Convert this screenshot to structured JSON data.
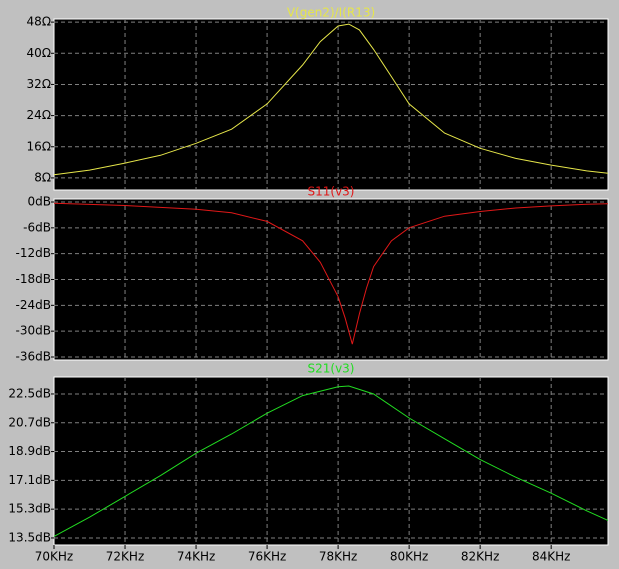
{
  "chart_data": [
    {
      "type": "line",
      "title": "V(gen2)/I(R13)",
      "color": "#e6e64a",
      "grid": true,
      "x": [
        70,
        71,
        72,
        73,
        74,
        75,
        76,
        77,
        77.5,
        78,
        78.3,
        78.6,
        79,
        79.5,
        80,
        81,
        82,
        83,
        84,
        85,
        85.6
      ],
      "values": [
        8.8,
        10,
        11.8,
        13.8,
        16.9,
        20.5,
        27,
        37,
        43,
        47,
        47.5,
        46,
        41,
        34,
        27,
        19.5,
        15.6,
        13,
        11.3,
        9.8,
        9.2
      ],
      "xlim": [
        70,
        85.6
      ],
      "ylim": [
        4.9,
        48.8
      ],
      "yticks": [
        {
          "value": 8,
          "label": "8Ω"
        },
        {
          "value": 16,
          "label": "16Ω"
        },
        {
          "value": 24,
          "label": "24Ω"
        },
        {
          "value": 32,
          "label": "32Ω"
        },
        {
          "value": 40,
          "label": "40Ω"
        },
        {
          "value": 48,
          "label": "48Ω"
        }
      ]
    },
    {
      "type": "line",
      "title": "S11(v3)",
      "color": "#e01818",
      "grid": true,
      "x": [
        70,
        72,
        74,
        75,
        76,
        77,
        77.5,
        78,
        78.2,
        78.4,
        78.6,
        78.8,
        79,
        79.5,
        80,
        81,
        82,
        83,
        84,
        85,
        85.6
      ],
      "values": [
        -0.3,
        -0.8,
        -1.7,
        -2.5,
        -4.5,
        -9,
        -14,
        -22,
        -27,
        -33,
        -26,
        -20,
        -15,
        -9,
        -6,
        -3.3,
        -2.2,
        -1.4,
        -0.9,
        -0.5,
        -0.4
      ],
      "xlim": [
        70,
        85.6
      ],
      "ylim": [
        -36.7,
        0.7
      ],
      "yticks": [
        {
          "value": -36,
          "label": "-36dB"
        },
        {
          "value": -30,
          "label": "-30dB"
        },
        {
          "value": -24,
          "label": "-24dB"
        },
        {
          "value": -18,
          "label": "-18dB"
        },
        {
          "value": -12,
          "label": "-12dB"
        },
        {
          "value": -6,
          "label": "-6dB"
        },
        {
          "value": 0,
          "label": "0dB"
        }
      ]
    },
    {
      "type": "line",
      "title": "S21(v3)",
      "color": "#22dd22",
      "grid": true,
      "x": [
        70,
        71,
        72,
        73,
        74,
        75,
        76,
        77,
        78,
        78.3,
        79,
        80,
        81,
        82,
        83,
        84,
        85,
        85.6
      ],
      "values": [
        13.6,
        14.8,
        16.1,
        17.4,
        18.8,
        20,
        21.3,
        22.4,
        22.95,
        23,
        22.5,
        21,
        19.7,
        18.4,
        17.3,
        16.3,
        15.2,
        14.6
      ],
      "xlim": [
        70,
        85.6
      ],
      "ylim": [
        13.06,
        23.56
      ],
      "yticks": [
        {
          "value": 13.5,
          "label": "13.5dB"
        },
        {
          "value": 15.3,
          "label": "15.3dB"
        },
        {
          "value": 17.1,
          "label": "17.1dB"
        },
        {
          "value": 18.9,
          "label": "18.9dB"
        },
        {
          "value": 20.7,
          "label": "20.7dB"
        },
        {
          "value": 22.5,
          "label": "22.5dB"
        }
      ],
      "xticks": [
        {
          "value": 70,
          "label": "70KHz"
        },
        {
          "value": 72,
          "label": "72KHz"
        },
        {
          "value": 74,
          "label": "74KHz"
        },
        {
          "value": 76,
          "label": "76KHz"
        },
        {
          "value": 78,
          "label": "78KHz"
        },
        {
          "value": 80,
          "label": "80KHz"
        },
        {
          "value": 82,
          "label": "82KHz"
        },
        {
          "value": 84,
          "label": "84KHz"
        }
      ]
    }
  ]
}
